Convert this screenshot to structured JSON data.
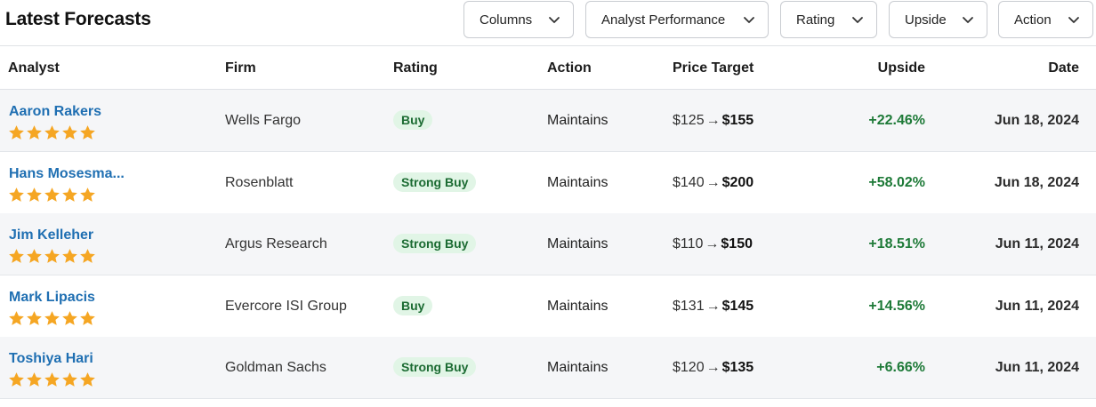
{
  "header": {
    "title": "Latest Forecasts",
    "filters": [
      "Columns",
      "Analyst Performance",
      "Rating",
      "Upside",
      "Action"
    ]
  },
  "table": {
    "columns": [
      "Analyst",
      "Firm",
      "Rating",
      "Action",
      "Price Target",
      "Upside",
      "Date"
    ],
    "rows": [
      {
        "analyst": "Aaron Rakers",
        "stars": 5,
        "firm": "Wells Fargo",
        "rating": "Buy",
        "action": "Maintains",
        "pt_old": "$125",
        "arrow": "→",
        "pt_new": "$155",
        "upside": "+22.46%",
        "date": "Jun 18, 2024"
      },
      {
        "analyst": "Hans Mosesma...",
        "stars": 5,
        "firm": "Rosenblatt",
        "rating": "Strong Buy",
        "action": "Maintains",
        "pt_old": "$140",
        "arrow": "→",
        "pt_new": "$200",
        "upside": "+58.02%",
        "date": "Jun 18, 2024"
      },
      {
        "analyst": "Jim Kelleher",
        "stars": 5,
        "firm": "Argus Research",
        "rating": "Strong Buy",
        "action": "Maintains",
        "pt_old": "$110",
        "arrow": "→",
        "pt_new": "$150",
        "upside": "+18.51%",
        "date": "Jun 11, 2024"
      },
      {
        "analyst": "Mark Lipacis",
        "stars": 5,
        "firm": "Evercore ISI Group",
        "rating": "Buy",
        "action": "Maintains",
        "pt_old": "$131",
        "arrow": "→",
        "pt_new": "$145",
        "upside": "+14.56%",
        "date": "Jun 11, 2024"
      },
      {
        "analyst": "Toshiya Hari",
        "stars": 5,
        "firm": "Goldman Sachs",
        "rating": "Strong Buy",
        "action": "Maintains",
        "pt_old": "$120",
        "arrow": "→",
        "pt_new": "$135",
        "upside": "+6.66%",
        "date": "Jun 11, 2024"
      }
    ]
  },
  "colors": {
    "analyst_link": "#1f6fb2",
    "star": "#f5a623",
    "upside_positive": "#1e7a38",
    "badge_bg": "#e1f5e6",
    "badge_text": "#1b6b32",
    "row_shaded": "#f5f6f8"
  },
  "icons": {
    "dropdown": "chevron-down-icon",
    "rating": "star-icon"
  }
}
